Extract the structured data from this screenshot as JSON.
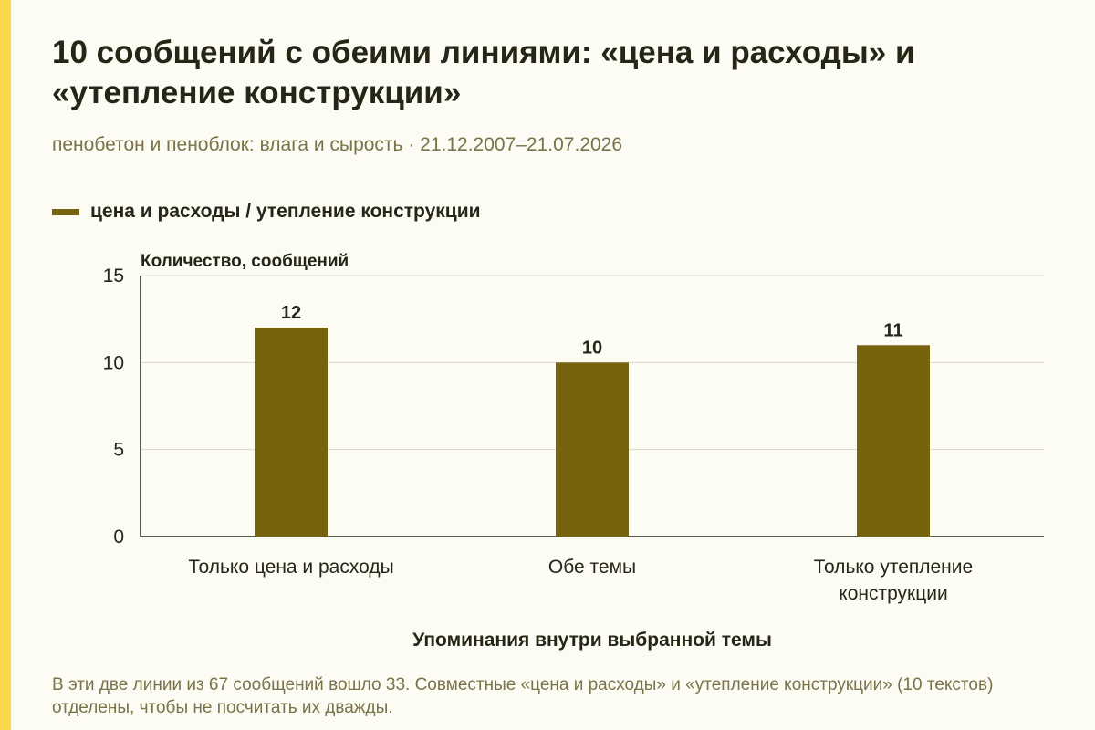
{
  "title": "10 сообщений с обеими линиями: «цена и расходы» и «утепление конструкции»",
  "subtitle": "пенобетон и пеноблок: влага и сырость · 21.12.2007–21.07.2026",
  "note": "В эти две линии из 67 сообщений вошло 33. Совместные «цена и расходы» и «утепление конструкции» (10 текстов) отделены, чтобы не посчитать их дважды.",
  "colors": {
    "accent": "#f7d94a",
    "bar": "#77620e",
    "background": "#fdfcf4"
  },
  "chart_data": {
    "type": "bar",
    "categories": [
      "Только цена и расходы",
      "Обе темы",
      "Только утепление конструкции"
    ],
    "series": [
      {
        "name": "цена и расходы / утепление конструкции",
        "values": [
          12,
          10,
          11
        ]
      }
    ],
    "xlabel": "Упоминания внутри выбранной темы",
    "ylabel": "Количество, сообщений",
    "ylim": [
      0,
      15
    ],
    "yticks": [
      0,
      5,
      10,
      15
    ],
    "grid": true,
    "legend": "top-left"
  }
}
